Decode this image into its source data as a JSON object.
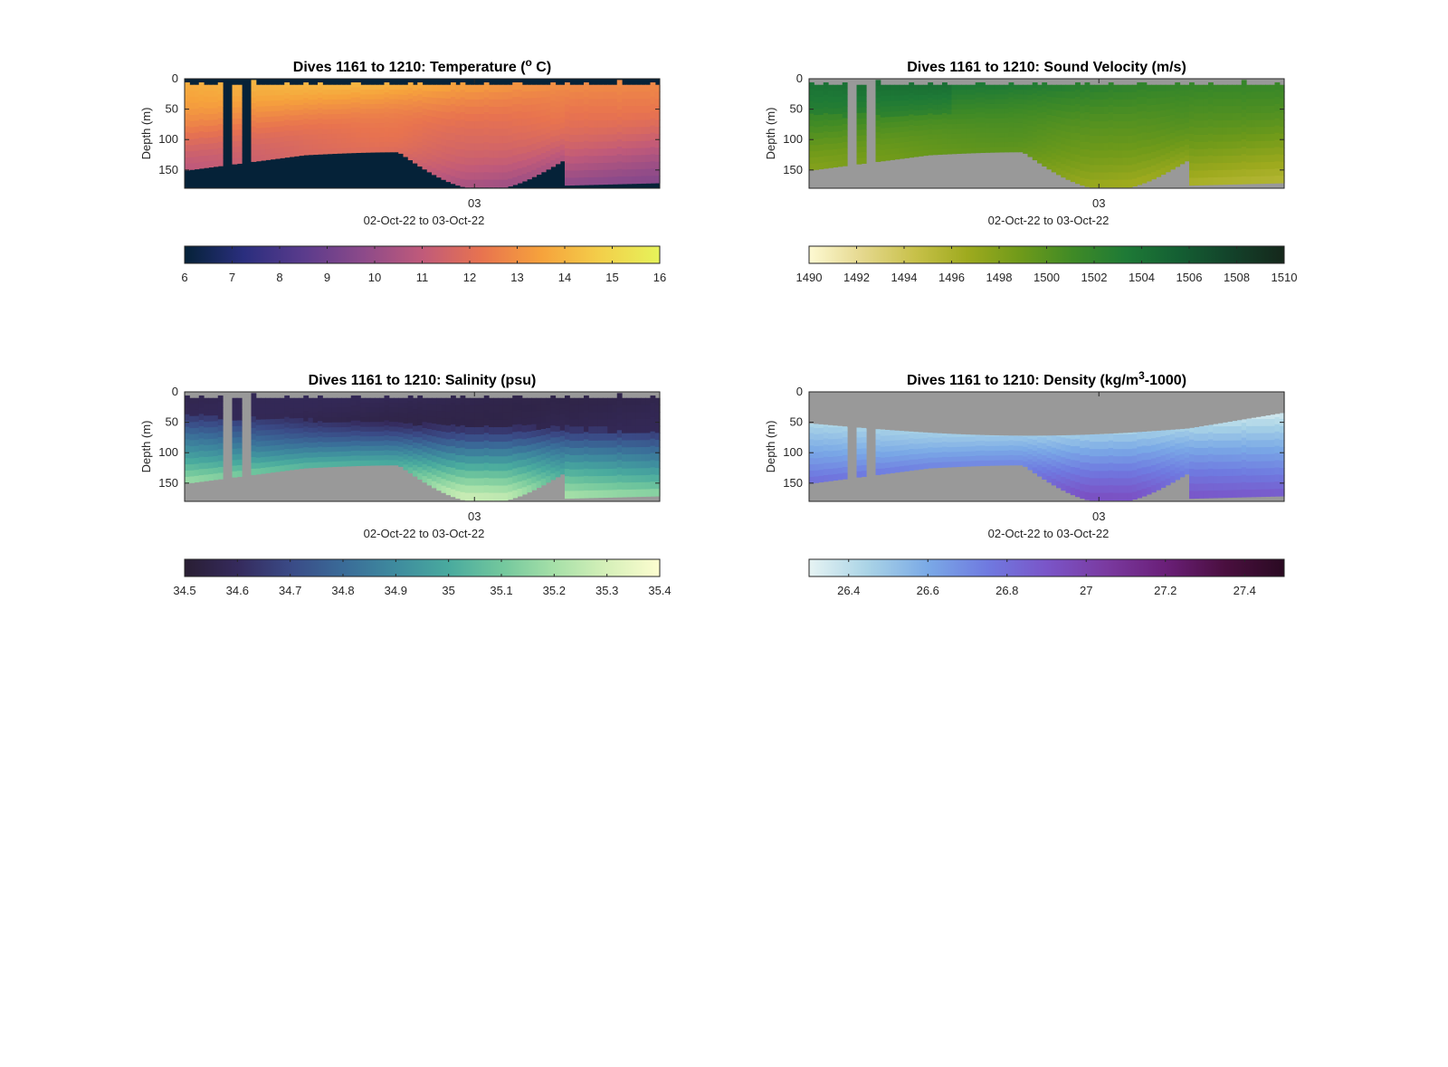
{
  "chart_data": [
    {
      "type": "heatmap",
      "title_main": "Dives 1161 to 1210: Temperature (",
      "title_sup": "o",
      "title_end": " C)",
      "ylabel": "Depth (m)",
      "xlabel": "02-Oct-22 to 03-Oct-22",
      "x_tick_label": "03",
      "y_ticks": [
        0,
        50,
        100,
        150
      ],
      "ylim": [
        0,
        180
      ],
      "colorbar": {
        "min": 6,
        "max": 16,
        "ticks": [
          6,
          7,
          8,
          9,
          10,
          11,
          12,
          13,
          14,
          15,
          16
        ],
        "colors": [
          "#052238",
          "#2a2e7e",
          "#5a3b8c",
          "#8c4a8a",
          "#c05a7a",
          "#e8734f",
          "#f6a23c",
          "#f3cf4a",
          "#e6f35a"
        ]
      },
      "background_color": "#052238",
      "field": {
        "top_value": 14.0,
        "bottom_value": 11.0,
        "mode": "temperature"
      },
      "colors": {
        "mask": "#052238"
      }
    },
    {
      "type": "heatmap",
      "title_main": "Dives 1161 to 1210: Sound Velocity (m/s)",
      "title_sup": "",
      "title_end": "",
      "ylabel": "Depth (m)",
      "xlabel": "02-Oct-22 to 03-Oct-22",
      "x_tick_label": "03",
      "y_ticks": [
        0,
        50,
        100,
        150
      ],
      "ylim": [
        0,
        180
      ],
      "colorbar": {
        "min": 1490,
        "max": 1510,
        "ticks": [
          1490,
          1492,
          1494,
          1496,
          1498,
          1500,
          1502,
          1504,
          1506,
          1508,
          1510
        ],
        "colors": [
          "#fdf9d2",
          "#e5d88e",
          "#c8c14a",
          "#9eaa1e",
          "#6f9a1a",
          "#3f8a26",
          "#1e7a36",
          "#145f33",
          "#13422a",
          "#15271b"
        ]
      },
      "background_color": "#999999",
      "field": {
        "top_value": 1503.5,
        "bottom_value": 1497.0,
        "mode": "sound"
      },
      "colors": {
        "mask": "#999999"
      }
    },
    {
      "type": "heatmap",
      "title_main": "Dives 1161 to 1210: Salinity (psu)",
      "title_sup": "",
      "title_end": "",
      "ylabel": "Depth (m)",
      "xlabel": "02-Oct-22 to 03-Oct-22",
      "x_tick_label": "03",
      "y_ticks": [
        0,
        50,
        100,
        150
      ],
      "ylim": [
        0,
        180
      ],
      "colorbar": {
        "min": 34.5,
        "max": 35.4,
        "ticks": [
          34.5,
          34.6,
          34.7,
          34.8,
          34.9,
          35,
          35.1,
          35.2,
          35.3,
          35.4
        ],
        "colors": [
          "#291e33",
          "#352a5c",
          "#3a4a86",
          "#3a6b98",
          "#3e8b9e",
          "#49aa9e",
          "#72c79d",
          "#a6e0a8",
          "#d6f0b9",
          "#fdfdd0"
        ]
      },
      "background_color": "#999999",
      "field": {
        "top_value": 34.62,
        "bottom_value": 35.25,
        "mode": "salinity"
      },
      "colors": {
        "mask": "#999999"
      }
    },
    {
      "type": "heatmap",
      "title_main": "Dives 1161 to 1210: Density (kg/m",
      "title_sup": "3",
      "title_end": "-1000)",
      "ylabel": "Depth (m)",
      "xlabel": "02-Oct-22 to 03-Oct-22",
      "x_tick_label": "03",
      "y_ticks": [
        0,
        50,
        100,
        150
      ],
      "ylim": [
        0,
        180
      ],
      "colorbar": {
        "min": 26.3,
        "max": 27.5,
        "ticks": [
          26.4,
          26.6,
          26.8,
          27,
          27.2,
          27.4
        ],
        "colors": [
          "#e6f3f3",
          "#a9d3e6",
          "#7aa9e6",
          "#6f7ae0",
          "#7a55c8",
          "#7a3aa0",
          "#6a1f78",
          "#4a0f3f",
          "#2a0a22"
        ]
      },
      "background_color": "#999999",
      "field": {
        "top_value": 26.45,
        "bottom_value": 26.85,
        "mode": "density"
      },
      "colors": {
        "mask": "#999999"
      }
    }
  ]
}
